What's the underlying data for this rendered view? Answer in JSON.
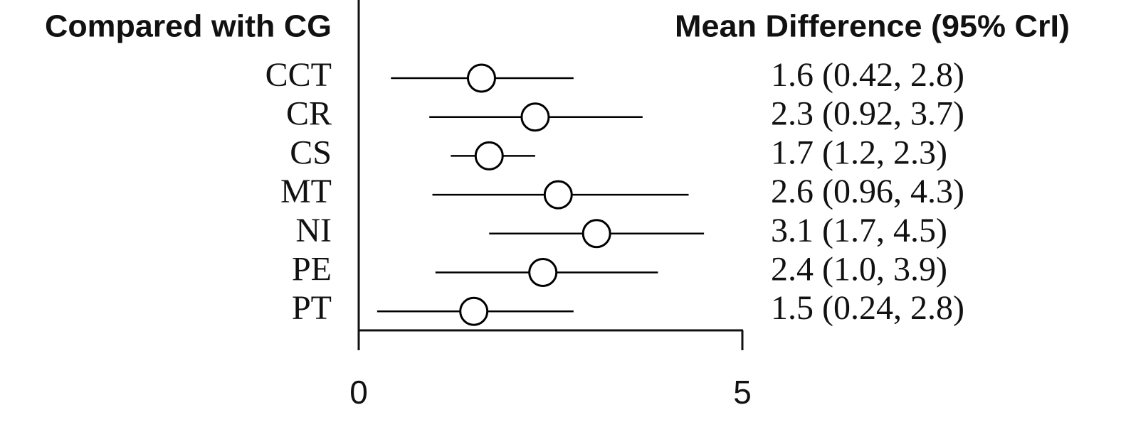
{
  "chart_data": {
    "type": "forest",
    "left_header": "Compared with CG",
    "right_header": "Mean Difference (95% CrI)",
    "categories": [
      "CCT",
      "CR",
      "CS",
      "MT",
      "NI",
      "PE",
      "PT"
    ],
    "values": [
      1.6,
      2.3,
      1.7,
      2.6,
      3.1,
      2.4,
      1.5
    ],
    "lower": [
      0.42,
      0.92,
      1.2,
      0.96,
      1.7,
      1.0,
      0.24
    ],
    "upper": [
      2.8,
      3.7,
      2.3,
      4.3,
      4.5,
      3.9,
      2.8
    ],
    "value_labels": [
      "1.6 (0.42, 2.8)",
      "2.3 (0.92, 3.7)",
      "1.7 (1.2, 2.3)",
      "2.6 (0.96, 4.3)",
      "3.1 (1.7, 4.5)",
      "2.4 (1.0, 3.9)",
      "1.5 (0.24, 2.8)"
    ],
    "color": "#000000",
    "xlim": [
      0,
      5
    ],
    "xticks": [
      0,
      5
    ]
  }
}
